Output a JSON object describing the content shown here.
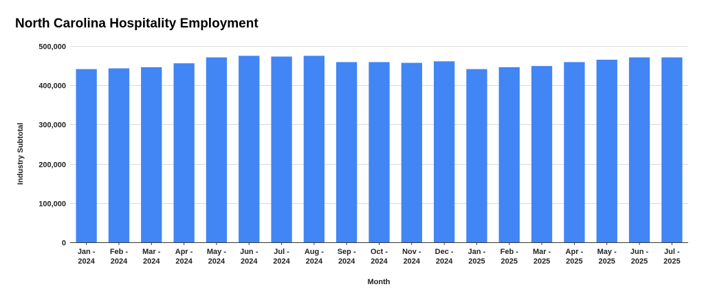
{
  "chart_data": {
    "type": "bar",
    "title": "North Carolina Hospitality Employment",
    "xlabel": "Month",
    "ylabel": "Industry Subtotal",
    "ylim": [
      0,
      500000
    ],
    "yticks": [
      0,
      100000,
      200000,
      300000,
      400000,
      500000
    ],
    "ytick_labels": [
      "0",
      "100,000",
      "200,000",
      "300,000",
      "400,000",
      "500,000"
    ],
    "categories": [
      [
        "Jan -",
        "2024"
      ],
      [
        "Feb -",
        "2024"
      ],
      [
        "Mar -",
        "2024"
      ],
      [
        "Apr -",
        "2024"
      ],
      [
        "May -",
        "2024"
      ],
      [
        "Jun -",
        "2024"
      ],
      [
        "Jul -",
        "2024"
      ],
      [
        "Aug -",
        "2024"
      ],
      [
        "Sep -",
        "2024"
      ],
      [
        "Oct -",
        "2024"
      ],
      [
        "Nov -",
        "2024"
      ],
      [
        "Dec -",
        "2024"
      ],
      [
        "Jan -",
        "2025"
      ],
      [
        "Feb -",
        "2025"
      ],
      [
        "Mar -",
        "2025"
      ],
      [
        "Apr -",
        "2025"
      ],
      [
        "May -",
        "2025"
      ],
      [
        "Jun -",
        "2025"
      ],
      [
        "Jul -",
        "2025"
      ]
    ],
    "values": [
      441000,
      443000,
      446000,
      456000,
      471000,
      475000,
      473000,
      475000,
      459000,
      459000,
      457000,
      461000,
      441000,
      446000,
      449000,
      459000,
      465000,
      471000,
      471000
    ],
    "grid": true,
    "legend": "none",
    "bar_color": "#4285f4"
  }
}
